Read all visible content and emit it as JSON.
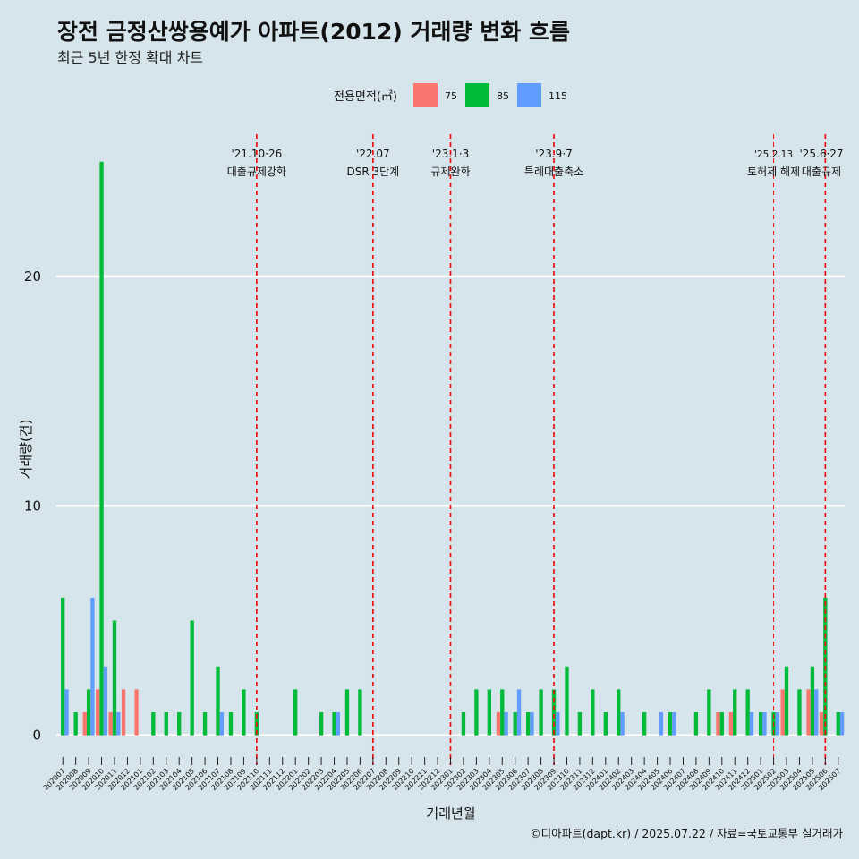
{
  "chart_data": {
    "type": "bar",
    "title": "장전 금정산쌍용예가 아파트(2012) 거래량 변화 흐름",
    "subtitle": "최근 5년 한정 확대 차트",
    "xlabel": "거래년월",
    "ylabel": "거래량(건)",
    "caption": "©디아파트(dapt.kr) / 2025.07.22 / 자료=국토교통부 실거래가",
    "legend": {
      "title": "전용면적(㎡)",
      "placement": "top"
    },
    "ylim": [
      -1.3,
      26.2
    ],
    "yticks": [
      0,
      10,
      20
    ],
    "grid": true,
    "categories": [
      "202007",
      "202008",
      "202009",
      "202010",
      "202011",
      "202012",
      "202101",
      "202102",
      "202103",
      "202104",
      "202105",
      "202106",
      "202107",
      "202108",
      "202109",
      "202110",
      "202111",
      "202112",
      "202201",
      "202202",
      "202203",
      "202204",
      "202205",
      "202206",
      "202207",
      "202208",
      "202209",
      "202210",
      "202211",
      "202212",
      "202301",
      "202302",
      "202303",
      "202304",
      "202305",
      "202306",
      "202307",
      "202308",
      "202309",
      "202310",
      "202311",
      "202312",
      "202401",
      "202402",
      "202403",
      "202404",
      "202405",
      "202406",
      "202407",
      "202408",
      "202409",
      "202410",
      "202411",
      "202412",
      "202501",
      "202502",
      "202503",
      "202504",
      "202505",
      "202506",
      "202507"
    ],
    "series": [
      {
        "name": "75",
        "color": "#f8766d",
        "values": [
          0,
          0,
          1,
          2,
          1,
          2,
          2,
          0,
          0,
          0,
          0,
          0,
          0,
          0,
          0,
          0,
          0,
          0,
          0,
          0,
          0,
          0,
          0,
          0,
          0,
          0,
          0,
          0,
          0,
          0,
          0,
          0,
          0,
          0,
          1,
          0,
          0,
          0,
          0,
          0,
          0,
          0,
          0,
          0,
          0,
          0,
          0,
          0,
          0,
          0,
          0,
          1,
          1,
          0,
          0,
          0,
          2,
          0,
          2,
          1,
          0
        ]
      },
      {
        "name": "85",
        "color": "#00ba38",
        "values": [
          6,
          1,
          2,
          25,
          5,
          0,
          0,
          1,
          1,
          1,
          5,
          1,
          3,
          1,
          2,
          1,
          0,
          0,
          2,
          0,
          1,
          1,
          2,
          2,
          0,
          0,
          0,
          0,
          0,
          0,
          0,
          1,
          2,
          2,
          2,
          1,
          1,
          2,
          2,
          3,
          1,
          2,
          1,
          2,
          0,
          1,
          0,
          1,
          0,
          1,
          2,
          1,
          2,
          2,
          1,
          1,
          3,
          2,
          3,
          6,
          1
        ]
      },
      {
        "name": "115",
        "color": "#619cff",
        "values": [
          2,
          0,
          6,
          3,
          1,
          0,
          0,
          0,
          0,
          0,
          0,
          0,
          1,
          0,
          0,
          0,
          0,
          0,
          0,
          0,
          0,
          1,
          0,
          0,
          0,
          0,
          0,
          0,
          0,
          0,
          0,
          0,
          0,
          0,
          1,
          2,
          1,
          0,
          1,
          0,
          0,
          0,
          0,
          1,
          0,
          0,
          1,
          1,
          0,
          0,
          0,
          0,
          0,
          1,
          1,
          1,
          0,
          0,
          2,
          0,
          1
        ]
      }
    ],
    "events": [
      {
        "date": "'21.10·26",
        "label": "대출규제강화",
        "at": "202110"
      },
      {
        "date": "'22.07",
        "label": "DSR 3단계",
        "at": "202207"
      },
      {
        "date": "'23.1·3",
        "label": "규제완화",
        "at": "202301"
      },
      {
        "date": "'23.9·7",
        "label": "특례대출축소",
        "at": "202309"
      },
      {
        "date": "'25.2.13",
        "label": "토허제 해제",
        "at": "202502"
      },
      {
        "date": "'25.6·27",
        "label": "대출규제",
        "at": "202506"
      }
    ]
  }
}
